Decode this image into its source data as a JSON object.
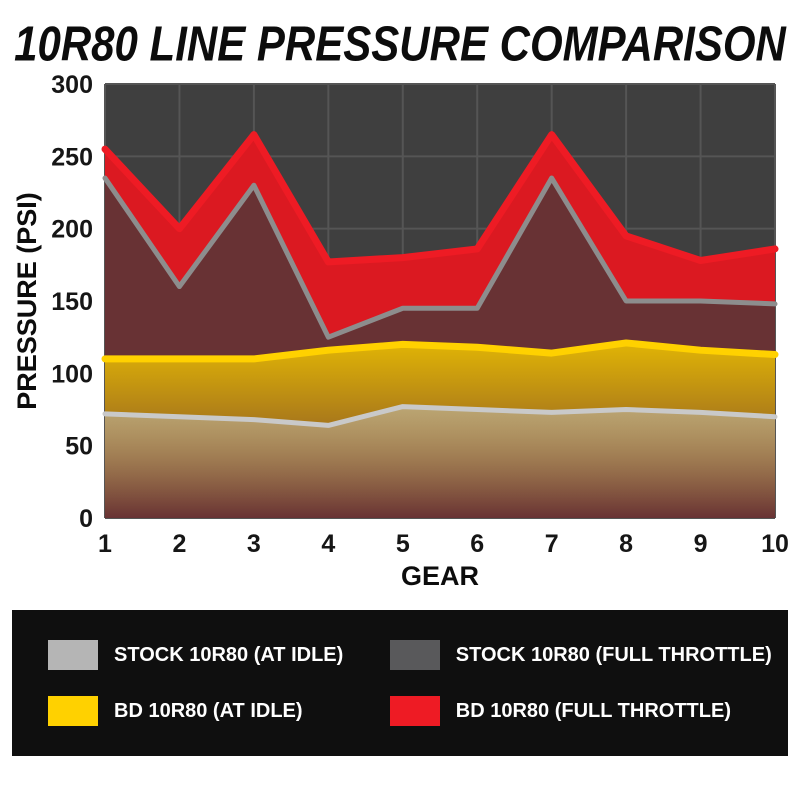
{
  "title": "10R80 LINE PRESSURE COMPARISON",
  "chart_data": {
    "type": "area",
    "x": [
      1,
      2,
      3,
      4,
      5,
      6,
      7,
      8,
      9,
      10
    ],
    "xlabel": "GEAR",
    "ylabel": "PRESSURE (PSI)",
    "ylim": [
      0,
      300
    ],
    "yticks": [
      0,
      50,
      100,
      150,
      200,
      250,
      300
    ],
    "grid": true,
    "plot_bg": "#3f3f3f",
    "grid_color": "#555555",
    "legend_position": "bottom",
    "series": [
      {
        "name": "BD 10R80 (FULL THROTTLE)",
        "key": "bd-full-throttle",
        "line_color": "#ee1b24",
        "line_width": 7,
        "fill": "solid",
        "fill_color": "#e01820",
        "fill_opacity": 0.97,
        "values": [
          255,
          200,
          265,
          177,
          180,
          186,
          265,
          195,
          178,
          186
        ]
      },
      {
        "name": "STOCK 10R80 (FULL THROTTLE)",
        "key": "stock-full-throttle",
        "line_color": "#8d8d8d",
        "line_width": 5,
        "fill": "solid",
        "fill_color": "#3c3c3c",
        "fill_opacity": 0.72,
        "values": [
          235,
          160,
          230,
          125,
          145,
          145,
          235,
          150,
          150,
          148
        ]
      },
      {
        "name": "BD 10R80 (AT IDLE)",
        "key": "bd-idle",
        "line_color": "#ffd100",
        "line_width": 7,
        "fill": "fade",
        "fill_color": "#eec300",
        "fill_opacity": 0.9,
        "values": [
          110,
          110,
          110,
          116,
          120,
          118,
          114,
          121,
          116,
          113
        ]
      },
      {
        "name": "STOCK 10R80 (AT IDLE)",
        "key": "stock-idle",
        "line_color": "#c9c9c9",
        "line_width": 5,
        "fill": "fade",
        "fill_color": "#c0c0c0",
        "fill_opacity": 0.55,
        "values": [
          72,
          70,
          68,
          64,
          77,
          75,
          73,
          75,
          73,
          70
        ]
      }
    ]
  },
  "legend": {
    "items": [
      {
        "label": "STOCK 10R80 (AT IDLE)",
        "color": "#b5b5b5",
        "key": "stock-idle"
      },
      {
        "label": "STOCK 10R80 (FULL THROTTLE)",
        "color": "#59595b",
        "key": "stock-full-throttle"
      },
      {
        "label": "BD 10R80 (AT IDLE)",
        "color": "#ffd100",
        "key": "bd-idle"
      },
      {
        "label": "BD 10R80 (FULL THROTTLE)",
        "color": "#ee1b24",
        "key": "bd-full-throttle"
      }
    ]
  }
}
